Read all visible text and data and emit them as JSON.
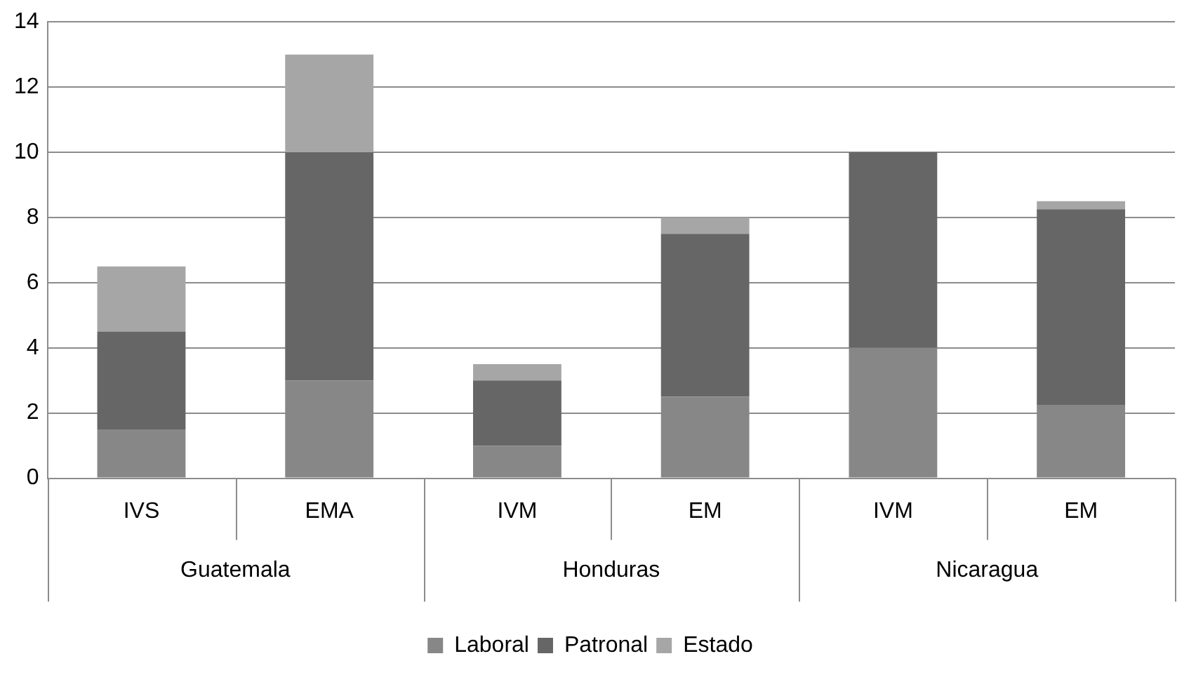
{
  "chart_data": {
    "type": "bar",
    "stacked": true,
    "categories": [
      "IVS",
      "EMA",
      "IVM",
      "EM",
      "IVM",
      "EM"
    ],
    "annotations": [
      "Guatemala",
      "Honduras",
      "Nicaragua"
    ],
    "series": [
      {
        "name": "Laboral",
        "color": "#878787",
        "values": [
          1.5,
          3,
          1,
          2.5,
          4,
          2.25
        ]
      },
      {
        "name": "Patronal",
        "color": "#666666",
        "values": [
          3,
          7,
          2,
          5,
          6,
          6
        ]
      },
      {
        "name": "Estado",
        "color": "#a6a6a6",
        "values": [
          2,
          3,
          0.5,
          0.5,
          0,
          0.25
        ]
      }
    ],
    "ylim": [
      0,
      14
    ],
    "yticks": [
      0,
      2,
      4,
      6,
      8,
      10,
      12,
      14
    ],
    "grid": "y",
    "legend": "bottom"
  }
}
